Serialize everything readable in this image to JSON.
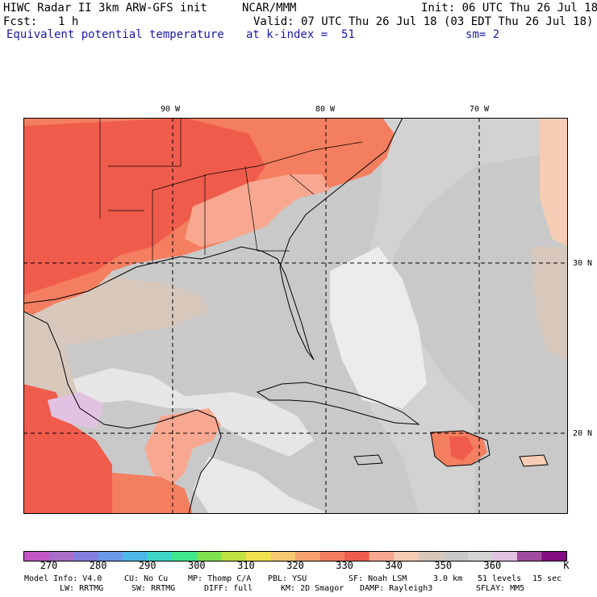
{
  "header": {
    "model": "HIWC Radar II 3km ARW-GFS init",
    "org": "NCAR/MMM",
    "init": "Init: 06 UTC Thu 26 Jul 18",
    "fcst_label": "Fcst:",
    "fcst_value": "1 h",
    "valid": "Valid: 07 UTC Thu 26 Jul 18 (03 EDT Thu 26 Jul 18)",
    "field": "Equivalent potential temperature",
    "level": "at k-index =  51",
    "smoothing": "sm= 2"
  },
  "map": {
    "lon_labels": [
      "90 W",
      "80 W",
      "70 W"
    ],
    "lat_labels": [
      "30 N",
      "20 N"
    ]
  },
  "colorbar": {
    "colors": [
      "#c356c6",
      "#a96ec8",
      "#8480e0",
      "#6c98ea",
      "#4bb8e8",
      "#3ed6c4",
      "#40e88e",
      "#7ee24c",
      "#c0e242",
      "#f0e24e",
      "#f8c870",
      "#f6a26e",
      "#f47e60",
      "#f05c4c",
      "#f8a890",
      "#f4cdb4",
      "#d8c8bc",
      "#c9c9c9",
      "#d4d4d4",
      "#e2c2e2",
      "#a04ca0",
      "#800c80"
    ],
    "tick_labels": [
      "270",
      "280",
      "290",
      "300",
      "310",
      "320",
      "330",
      "340",
      "350",
      "360"
    ],
    "unit": "K"
  },
  "footer": {
    "line1": [
      "Model Info: V4.0",
      "CU: No Cu",
      "MP: Thomp C/A",
      "PBL: YSU",
      "SF: Noah LSM",
      "3.0 km",
      "51 levels",
      "15 sec"
    ],
    "line2": [
      "LW: RRTMG",
      "SW: RRTMG",
      "DIFF: full",
      "KM: 2D Smagor",
      "DAMP: Rayleigh3",
      "SFLAY: MM5"
    ]
  }
}
